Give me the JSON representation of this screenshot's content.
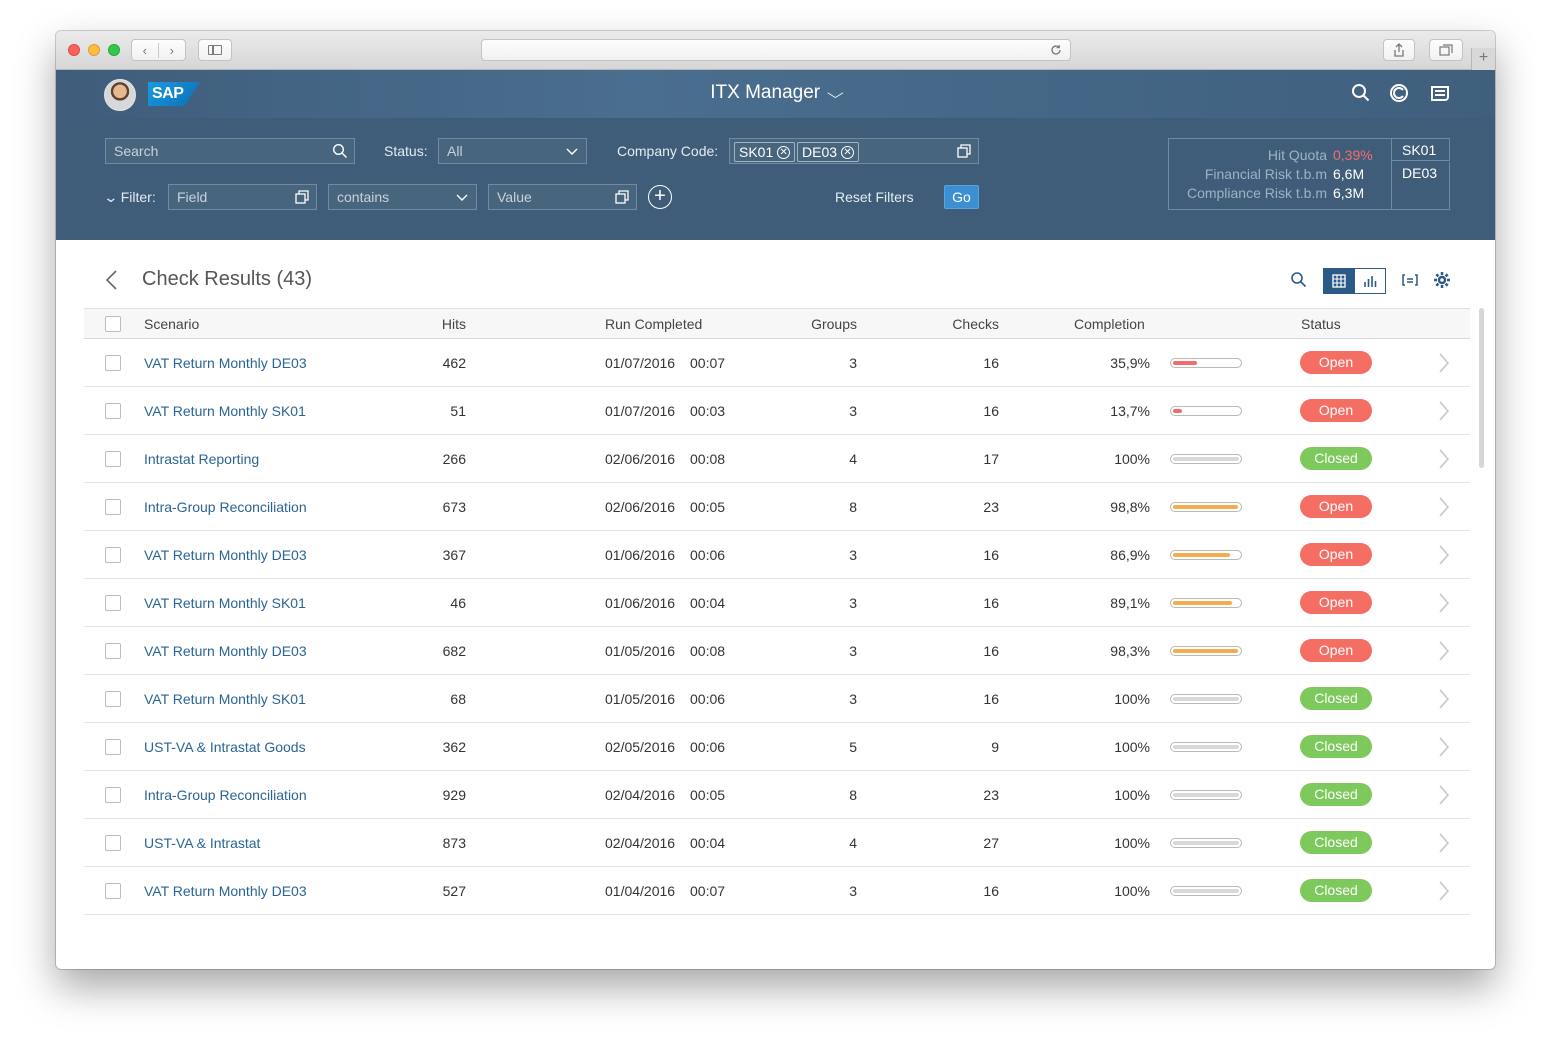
{
  "browser": {
    "nav_back": "‹",
    "nav_forward": "›",
    "new_tab": "+"
  },
  "app": {
    "title": "ITX Manager",
    "logo_text": "SAP",
    "chevron": "⌵"
  },
  "filters": {
    "search_placeholder": "Search",
    "status_label": "Status:",
    "status_value": "All",
    "company_code_label": "Company Code:",
    "company_codes": [
      "SK01",
      "DE03"
    ],
    "filter_label": "Filter:",
    "field_placeholder": "Field",
    "operator_value": "contains",
    "value_placeholder": "Value",
    "add_label": "+",
    "reset_label": "Reset Filters",
    "go_label": "Go"
  },
  "kpi": {
    "rows": [
      {
        "label": "Hit Quota",
        "value": "0,39%"
      },
      {
        "label": "Financial Risk t.b.m",
        "value": "6,6M"
      },
      {
        "label": "Compliance Risk t.b.m",
        "value": "6,3M"
      }
    ],
    "tabs": [
      "SK01",
      "DE03"
    ],
    "accent_color": "#f46e6e"
  },
  "page": {
    "title": "Check Results (43)"
  },
  "table": {
    "columns": [
      "Scenario",
      "Hits",
      "Run Completed",
      "Groups",
      "Checks",
      "Completion",
      "Status"
    ],
    "rows": [
      {
        "scenario": "VAT Return Monthly DE03",
        "hits": "462",
        "date": "01/07/2016",
        "time": "00:07",
        "groups": "3",
        "checks": "16",
        "completion": "35,9%",
        "progress": 0.359,
        "status": "Open"
      },
      {
        "scenario": "VAT Return Monthly SK01",
        "hits": "51",
        "date": "01/07/2016",
        "time": "00:03",
        "groups": "3",
        "checks": "16",
        "completion": "13,7%",
        "progress": 0.137,
        "status": "Open"
      },
      {
        "scenario": "Intrastat Reporting",
        "hits": "266",
        "date": "02/06/2016",
        "time": "00:08",
        "groups": "4",
        "checks": "17",
        "completion": "100%",
        "progress": 1.0,
        "status": "Closed"
      },
      {
        "scenario": "Intra-Group Reconciliation",
        "hits": "673",
        "date": "02/06/2016",
        "time": "00:05",
        "groups": "8",
        "checks": "23",
        "completion": "98,8%",
        "progress": 0.988,
        "status": "Open"
      },
      {
        "scenario": "VAT Return Monthly DE03",
        "hits": "367",
        "date": "01/06/2016",
        "time": "00:06",
        "groups": "3",
        "checks": "16",
        "completion": "86,9%",
        "progress": 0.869,
        "status": "Open"
      },
      {
        "scenario": "VAT Return Monthly SK01",
        "hits": "46",
        "date": "01/06/2016",
        "time": "00:04",
        "groups": "3",
        "checks": "16",
        "completion": "89,1%",
        "progress": 0.891,
        "status": "Open"
      },
      {
        "scenario": "VAT Return Monthly DE03",
        "hits": "682",
        "date": "01/05/2016",
        "time": "00:08",
        "groups": "3",
        "checks": "16",
        "completion": "98,3%",
        "progress": 0.983,
        "status": "Open"
      },
      {
        "scenario": "VAT Return Monthly SK01",
        "hits": "68",
        "date": "01/05/2016",
        "time": "00:06",
        "groups": "3",
        "checks": "16",
        "completion": "100%",
        "progress": 1.0,
        "status": "Closed"
      },
      {
        "scenario": "UST-VA & Intrastat Goods",
        "hits": "362",
        "date": "02/05/2016",
        "time": "00:06",
        "groups": "5",
        "checks": "9",
        "completion": "100%",
        "progress": 1.0,
        "status": "Closed"
      },
      {
        "scenario": "Intra-Group Reconciliation",
        "hits": "929",
        "date": "02/04/2016",
        "time": "00:05",
        "groups": "8",
        "checks": "23",
        "completion": "100%",
        "progress": 1.0,
        "status": "Closed"
      },
      {
        "scenario": "UST-VA & Intrastat",
        "hits": "873",
        "date": "02/04/2016",
        "time": "00:04",
        "groups": "4",
        "checks": "27",
        "completion": "100%",
        "progress": 1.0,
        "status": "Closed"
      },
      {
        "scenario": "VAT Return Monthly DE03",
        "hits": "527",
        "date": "01/04/2016",
        "time": "00:07",
        "groups": "3",
        "checks": "16",
        "completion": "100%",
        "progress": 1.0,
        "status": "Closed"
      }
    ]
  },
  "colors": {
    "open": "#f46e64",
    "closed": "#7dc95e",
    "link": "#2a6496",
    "header_bg": "#3f5d78"
  }
}
